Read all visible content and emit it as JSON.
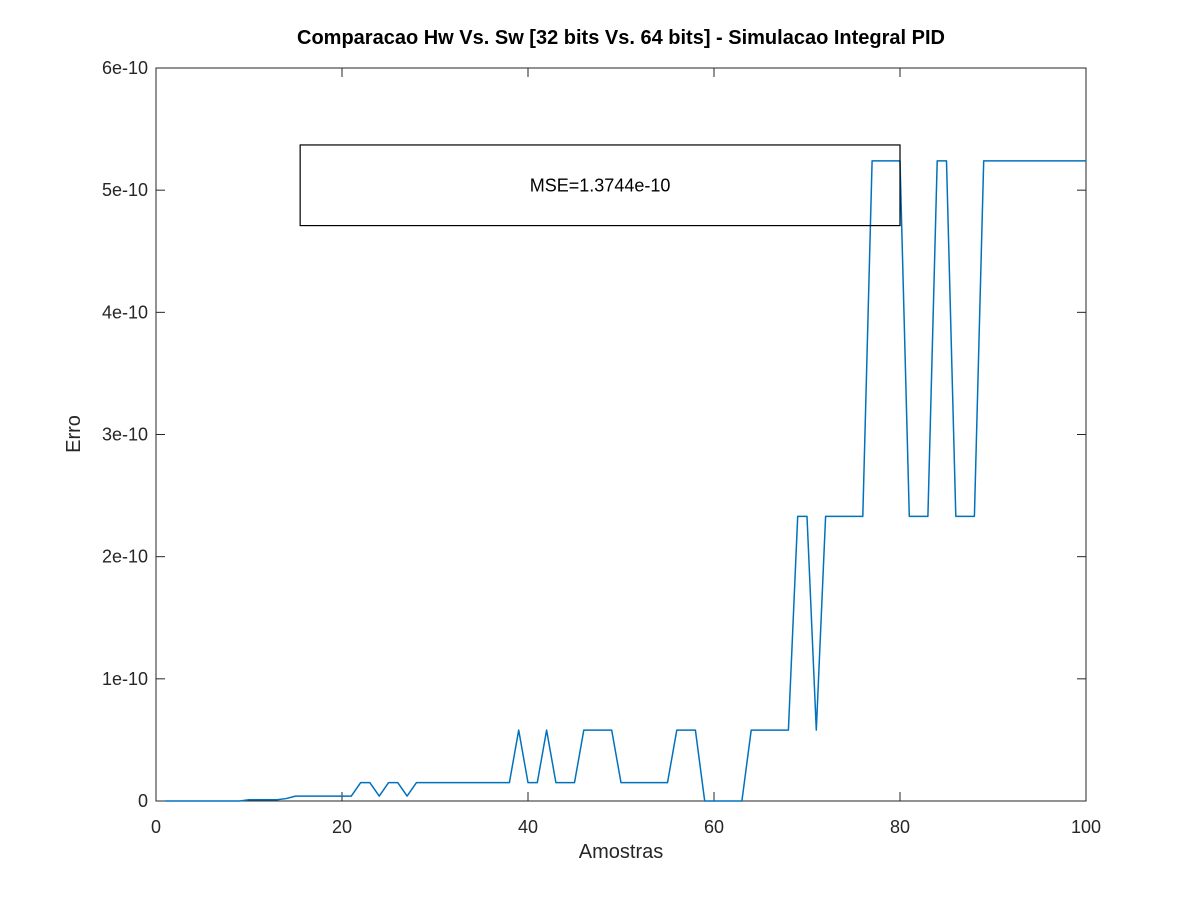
{
  "chart_data": {
    "type": "line",
    "title": "Comparacao Hw Vs. Sw [32 bits Vs. 64 bits] - Simulacao Integral PID",
    "xlabel": "Amostras",
    "ylabel": "Erro",
    "xlim": [
      0,
      100
    ],
    "ylim": [
      0,
      6e-10
    ],
    "xticks": [
      0,
      20,
      40,
      60,
      80,
      100
    ],
    "xtick_labels": [
      "0",
      "20",
      "40",
      "60",
      "80",
      "100"
    ],
    "yticks": [
      0,
      1e-10,
      2e-10,
      3e-10,
      4e-10,
      5e-10,
      6e-10
    ],
    "ytick_labels": [
      "0",
      "1e-10",
      "2e-10",
      "3e-10",
      "4e-10",
      "5e-10",
      "6e-10"
    ],
    "grid": false,
    "color": "#0072bd",
    "annotation": {
      "text": "MSE=1.3744e-10",
      "box": {
        "x0": 15.5,
        "x1": 80,
        "y0": 4.71e-10,
        "y1": 5.37e-10
      }
    },
    "series": [
      {
        "x": [
          1,
          2,
          3,
          4,
          5,
          6,
          7,
          8,
          9,
          10,
          11,
          12,
          13,
          14,
          15,
          16,
          17,
          18,
          19,
          20,
          21,
          22,
          23,
          24,
          25,
          26,
          27,
          28,
          29,
          30,
          31,
          32,
          33,
          34,
          35,
          36,
          37,
          38,
          39,
          40,
          41,
          42,
          43,
          44,
          45,
          46,
          47,
          48,
          49,
          50,
          51,
          52,
          53,
          54,
          55,
          56,
          57,
          58,
          59,
          60,
          61,
          62,
          63,
          64,
          65,
          66,
          67,
          68,
          69,
          70,
          71,
          72,
          73,
          74,
          75,
          76,
          77,
          78,
          79,
          80,
          81,
          82,
          83,
          84,
          85,
          86,
          87,
          88,
          89,
          90,
          91,
          92,
          93,
          94,
          95,
          96,
          97,
          98,
          99,
          100
        ],
        "y": [
          0,
          0,
          0,
          0,
          0,
          0,
          0,
          0,
          0,
          1e-12,
          1e-12,
          1e-12,
          1e-12,
          2e-12,
          4e-12,
          4e-12,
          4e-12,
          4e-12,
          4e-12,
          4e-12,
          4e-12,
          1.5e-11,
          1.5e-11,
          4e-12,
          1.5e-11,
          1.5e-11,
          4e-12,
          1.5e-11,
          1.5e-11,
          1.5e-11,
          1.5e-11,
          1.5e-11,
          1.5e-11,
          1.5e-11,
          1.5e-11,
          1.5e-11,
          1.5e-11,
          1.5e-11,
          5.8e-11,
          1.5e-11,
          1.5e-11,
          5.8e-11,
          1.5e-11,
          1.5e-11,
          1.5e-11,
          5.8e-11,
          5.8e-11,
          5.8e-11,
          5.8e-11,
          1.5e-11,
          1.5e-11,
          1.5e-11,
          1.5e-11,
          1.5e-11,
          1.5e-11,
          5.8e-11,
          5.8e-11,
          5.8e-11,
          0,
          0,
          0,
          0,
          0,
          5.8e-11,
          5.8e-11,
          5.8e-11,
          5.8e-11,
          5.8e-11,
          2.33e-10,
          2.33e-10,
          5.8e-11,
          2.33e-10,
          2.33e-10,
          2.33e-10,
          2.33e-10,
          2.33e-10,
          5.24e-10,
          5.24e-10,
          5.24e-10,
          5.24e-10,
          2.33e-10,
          2.33e-10,
          2.33e-10,
          5.24e-10,
          5.24e-10,
          2.33e-10,
          2.33e-10,
          2.33e-10,
          5.24e-10,
          5.24e-10,
          5.24e-10,
          5.24e-10,
          5.24e-10,
          5.24e-10,
          5.24e-10,
          5.24e-10,
          5.24e-10,
          5.24e-10,
          5.24e-10,
          5.24e-10
        ]
      }
    ]
  }
}
